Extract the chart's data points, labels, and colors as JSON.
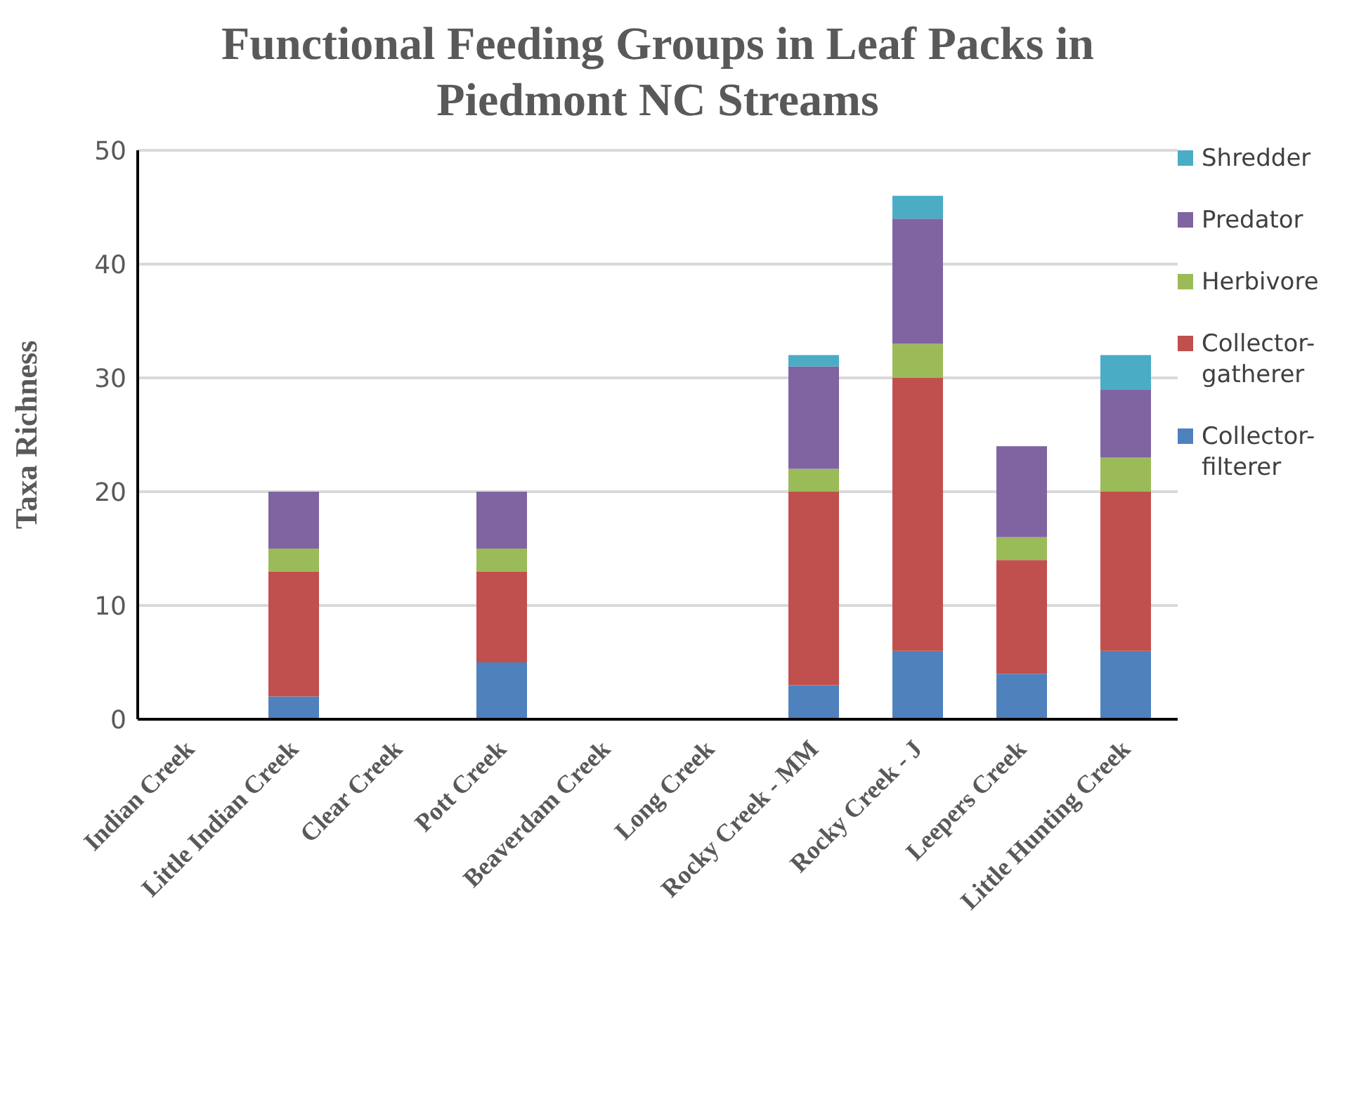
{
  "chart_data": {
    "type": "bar",
    "title": "Functional Feeding Groups in Leaf Packs in Piedmont NC Streams",
    "ylabel": "Taxa Richness",
    "categories": [
      "Indian Creek",
      "Little Indian Creek",
      "Clear Creek",
      "Pott Creek",
      "Beaverdam Creek",
      "Long Creek",
      "Rocky Creek - MM",
      "Rocky Creek - J",
      "Leepers Creek",
      "Little Hunting Creek"
    ],
    "series": [
      {
        "name": "Collector-filterer",
        "color": "#4f81bd",
        "values": [
          0,
          2,
          0,
          5,
          0,
          0,
          3,
          6,
          4,
          6
        ]
      },
      {
        "name": "Collector-gatherer",
        "color": "#c0504d",
        "values": [
          0,
          11,
          0,
          8,
          0,
          0,
          17,
          24,
          10,
          14
        ]
      },
      {
        "name": "Herbivore",
        "color": "#9bbb59",
        "values": [
          0,
          2,
          0,
          2,
          0,
          0,
          2,
          3,
          2,
          3
        ]
      },
      {
        "name": "Predator",
        "color": "#8064a2",
        "values": [
          0,
          5,
          0,
          5,
          0,
          0,
          9,
          11,
          8,
          6
        ]
      },
      {
        "name": "Shredder",
        "color": "#4bacc6",
        "values": [
          0,
          0,
          0,
          0,
          0,
          0,
          1,
          2,
          0,
          3
        ]
      }
    ],
    "stacked": true,
    "ylim": [
      0,
      50
    ],
    "yticks": [
      0,
      10,
      20,
      30,
      40,
      50
    ],
    "grid": "y",
    "legend": "right"
  }
}
